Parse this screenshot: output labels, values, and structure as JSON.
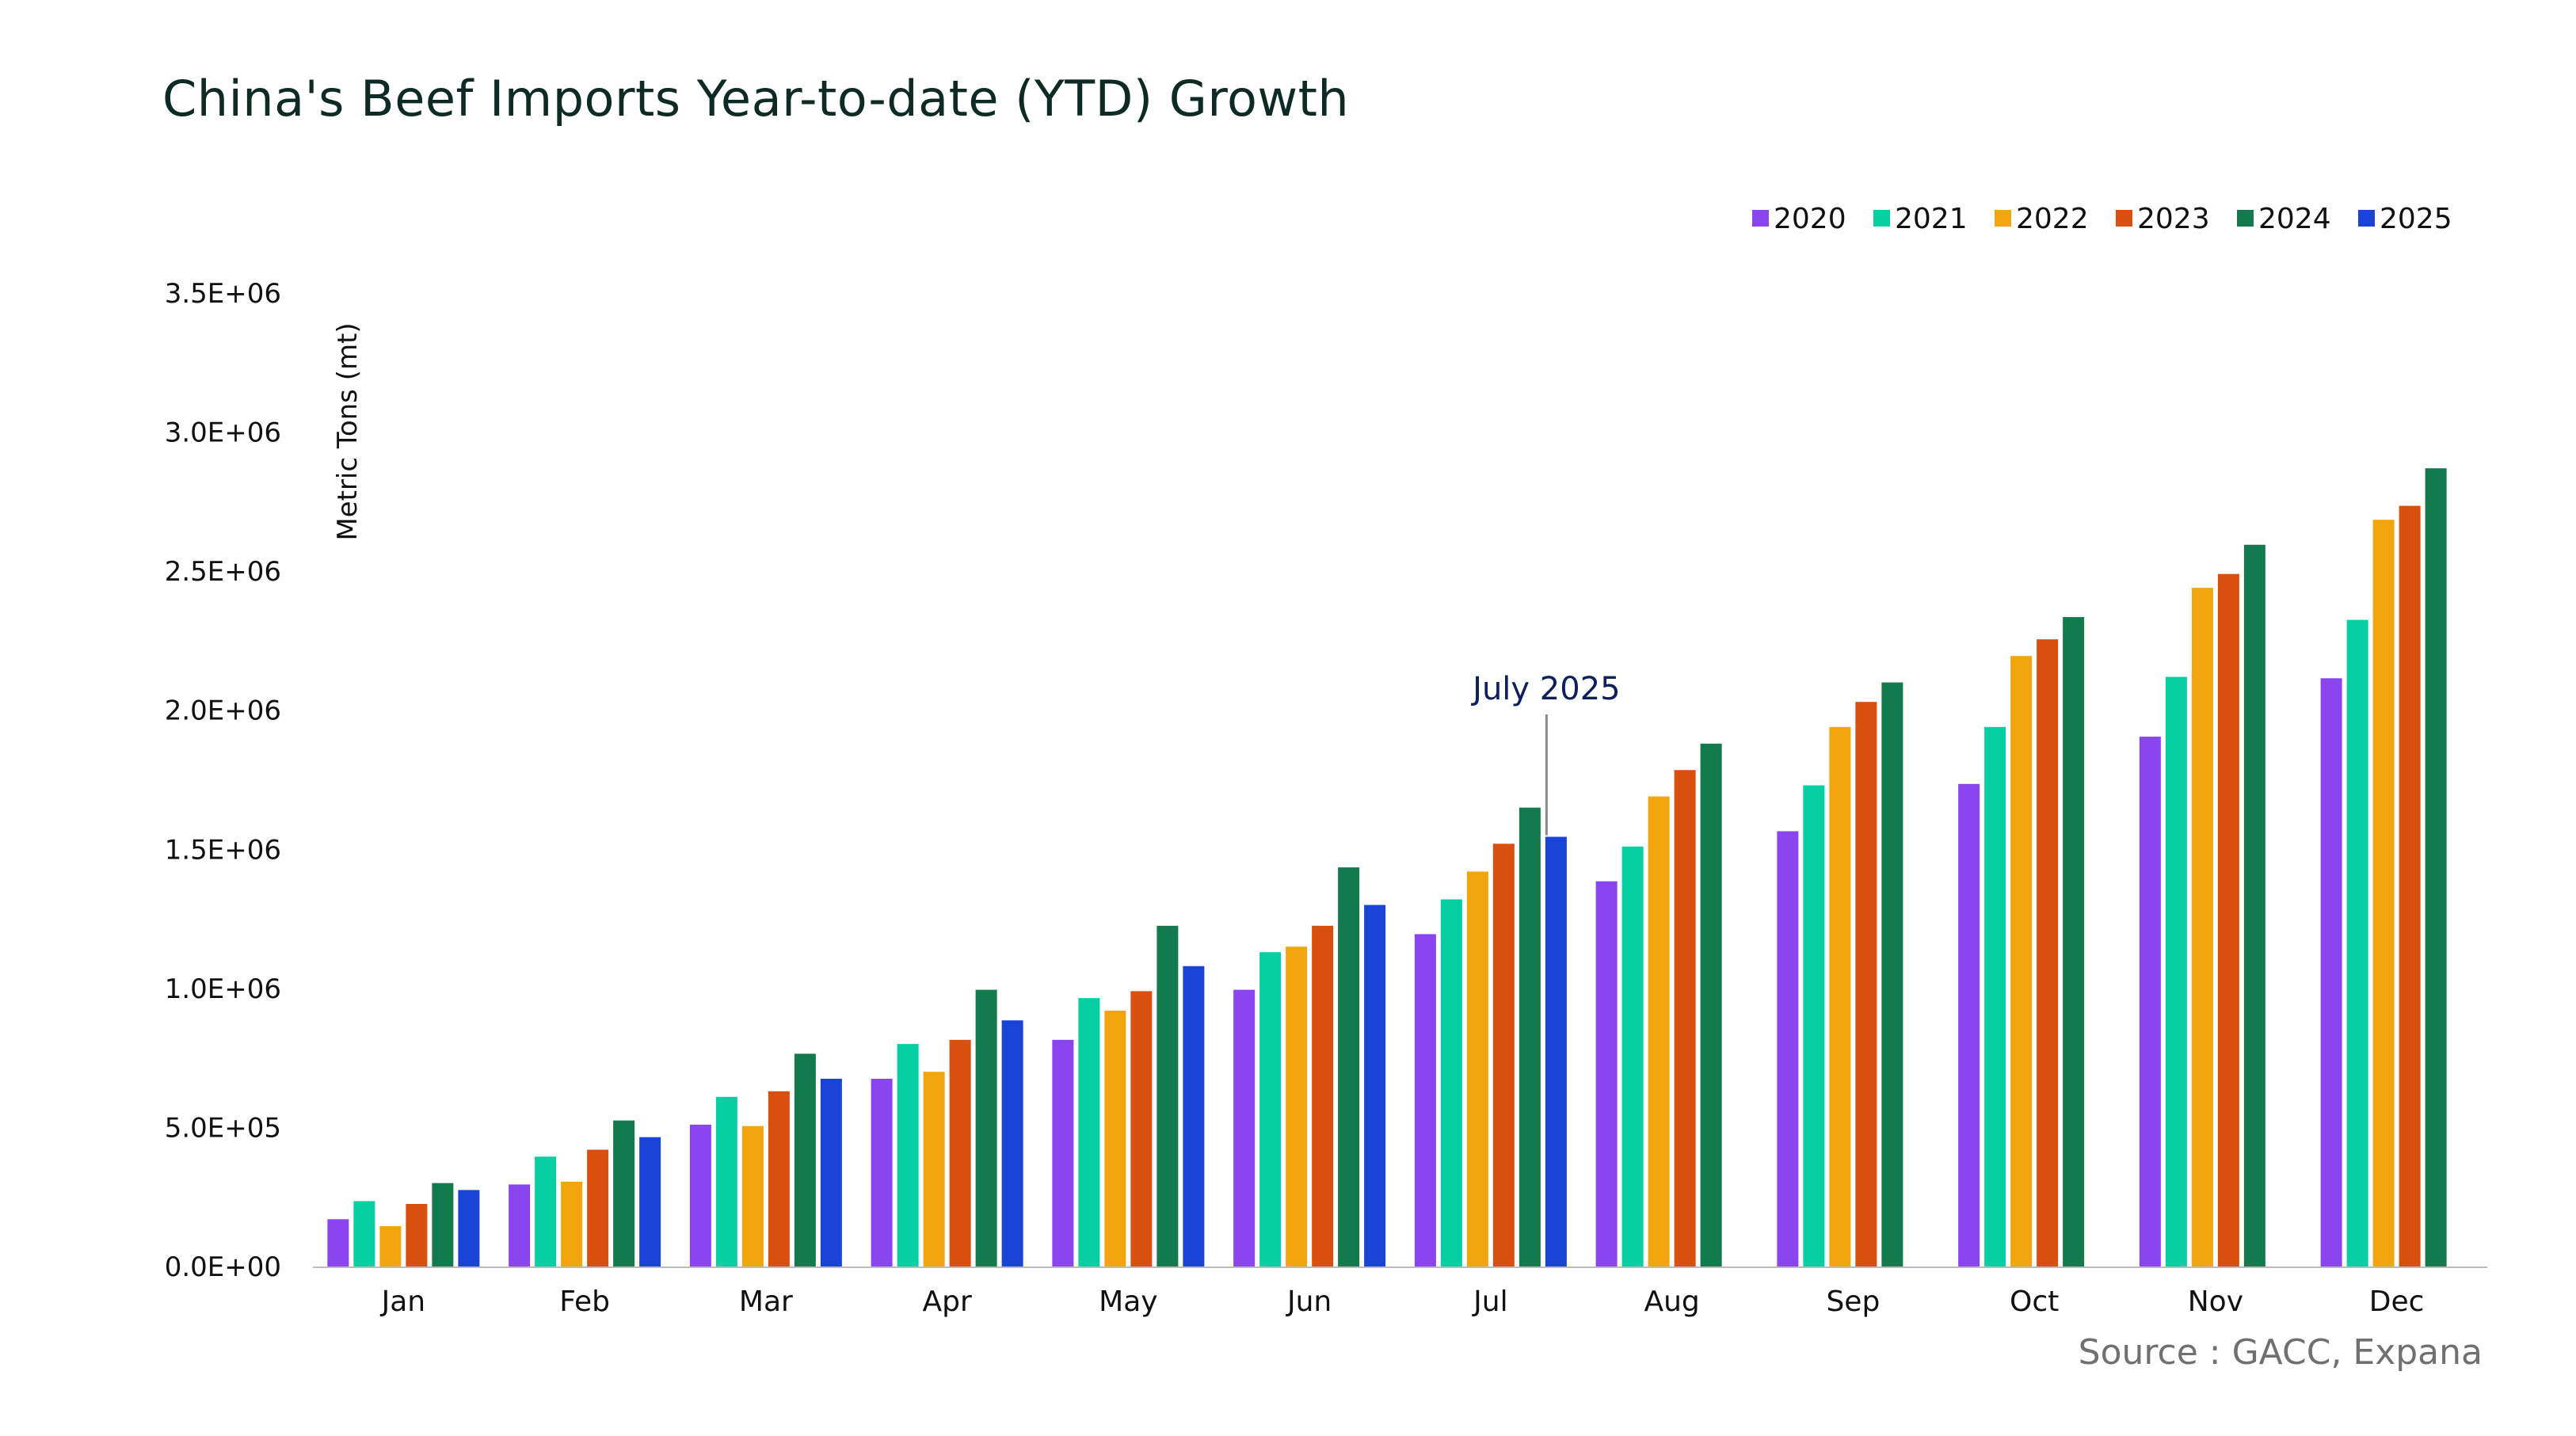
{
  "title": "China's Beef Imports Year-to-date (YTD) Growth",
  "source": "Source : GACC, Expana",
  "chart_data": {
    "type": "bar",
    "title": "China's Beef Imports Year-to-date (YTD) Growth",
    "xlabel": "",
    "ylabel": "Metric Tons (mt)",
    "ylim": [
      0,
      3500000
    ],
    "yticks": [
      {
        "value": 0,
        "label": "0.0E+00"
      },
      {
        "value": 500000,
        "label": "5.0E+05"
      },
      {
        "value": 1000000,
        "label": "1.0E+06"
      },
      {
        "value": 1500000,
        "label": "1.5E+06"
      },
      {
        "value": 2000000,
        "label": "2.0E+06"
      },
      {
        "value": 2500000,
        "label": "2.5E+06"
      },
      {
        "value": 3000000,
        "label": "3.0E+06"
      },
      {
        "value": 3500000,
        "label": "3.5E+06"
      }
    ],
    "grid": false,
    "legend_position": "top-right",
    "categories": [
      "Jan",
      "Feb",
      "Mar",
      "Apr",
      "May",
      "Jun",
      "Jul",
      "Aug",
      "Sep",
      "Oct",
      "Nov",
      "Dec"
    ],
    "series": [
      {
        "name": "2020",
        "color": "#8a45f0",
        "values": [
          170000,
          295000,
          510000,
          675000,
          815000,
          995000,
          1195000,
          1385000,
          1565000,
          1735000,
          1905000,
          2115000
        ]
      },
      {
        "name": "2021",
        "color": "#06cfa3",
        "values": [
          235000,
          395000,
          610000,
          800000,
          965000,
          1130000,
          1320000,
          1510000,
          1730000,
          1940000,
          2120000,
          2325000
        ]
      },
      {
        "name": "2022",
        "color": "#f2a50c",
        "values": [
          145000,
          305000,
          505000,
          700000,
          920000,
          1150000,
          1420000,
          1690000,
          1940000,
          2195000,
          2440000,
          2685000
        ]
      },
      {
        "name": "2023",
        "color": "#d94f0e",
        "values": [
          225000,
          420000,
          630000,
          815000,
          990000,
          1225000,
          1520000,
          1785000,
          2030000,
          2255000,
          2490000,
          2735000
        ]
      },
      {
        "name": "2024",
        "color": "#137a4e",
        "values": [
          300000,
          525000,
          765000,
          995000,
          1225000,
          1435000,
          1650000,
          1880000,
          2100000,
          2335000,
          2595000,
          2870000
        ]
      },
      {
        "name": "2025",
        "color": "#1a44d8",
        "values": [
          275000,
          465000,
          675000,
          885000,
          1080000,
          1300000,
          1545000,
          null,
          null,
          null,
          null,
          null
        ]
      }
    ],
    "annotations": [
      {
        "text": "July 2025",
        "category": "Jul",
        "series": "2025",
        "color": "#0d1f5c"
      }
    ]
  }
}
